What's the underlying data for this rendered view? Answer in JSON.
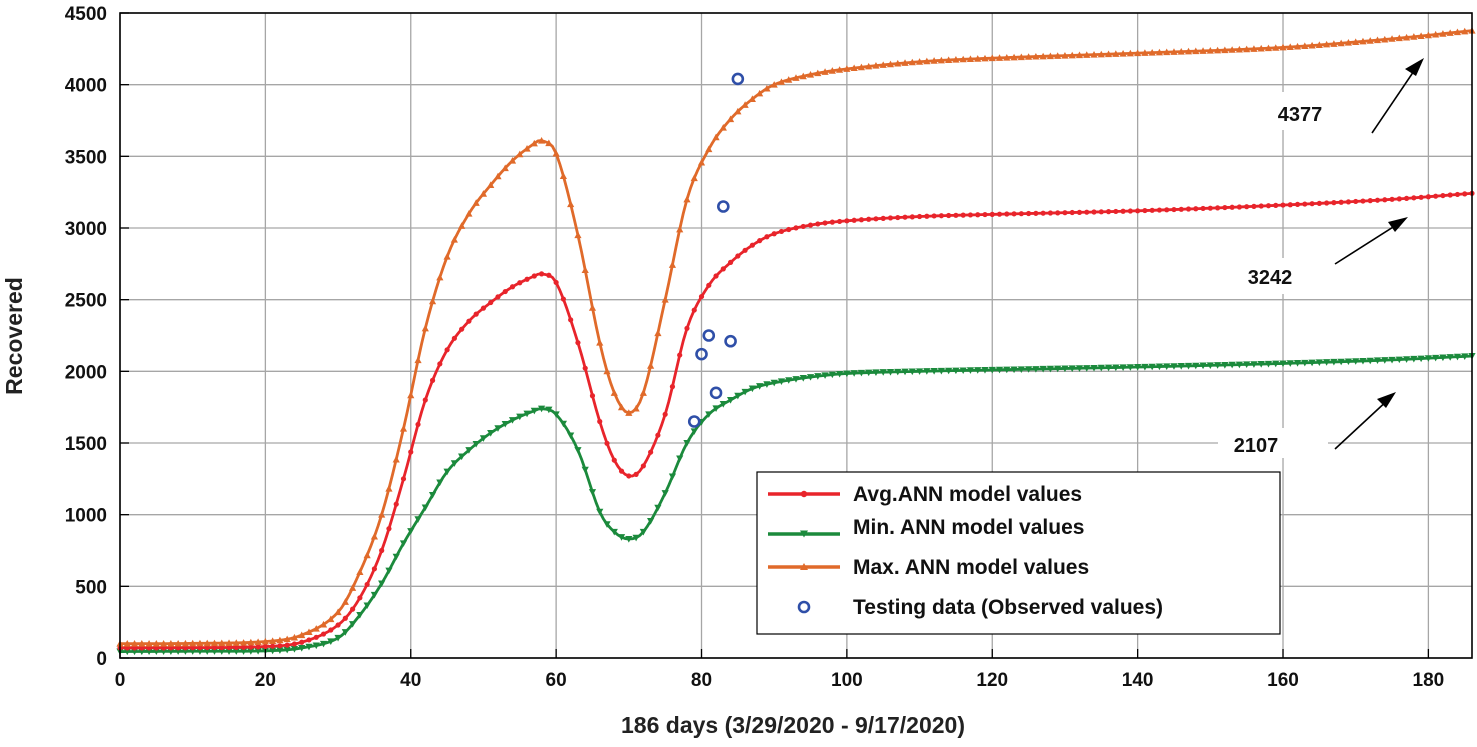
{
  "chart_data": {
    "type": "line",
    "title": "",
    "xlabel": "186 days (3/29/2020 - 9/17/2020)",
    "ylabel": "Recovered",
    "xlim": [
      0,
      186
    ],
    "ylim": [
      0,
      4500
    ],
    "xticks": [
      0,
      20,
      40,
      60,
      80,
      100,
      120,
      140,
      160,
      180
    ],
    "yticks": [
      0,
      500,
      1000,
      1500,
      2000,
      2500,
      3000,
      3500,
      4000,
      4500
    ],
    "grid": true,
    "legend_position": "bottom-right",
    "colors": {
      "avg": "#e8242b",
      "min": "#1b8a3c",
      "max": "#e06a2a",
      "testing": "#2f4fa8",
      "grid": "#a6a6a6"
    },
    "series": [
      {
        "name": "Avg.ANN model values",
        "marker": "dot",
        "anchors": [
          [
            0,
            70
          ],
          [
            10,
            72
          ],
          [
            20,
            80
          ],
          [
            25,
            110
          ],
          [
            30,
            230
          ],
          [
            33,
            420
          ],
          [
            36,
            750
          ],
          [
            39,
            1250
          ],
          [
            42,
            1800
          ],
          [
            45,
            2150
          ],
          [
            48,
            2350
          ],
          [
            51,
            2480
          ],
          [
            54,
            2590
          ],
          [
            57,
            2665
          ],
          [
            58,
            2680
          ],
          [
            60,
            2620
          ],
          [
            63,
            2200
          ],
          [
            66,
            1650
          ],
          [
            68,
            1380
          ],
          [
            70,
            1270
          ],
          [
            72,
            1340
          ],
          [
            75,
            1700
          ],
          [
            78,
            2300
          ],
          [
            81,
            2600
          ],
          [
            84,
            2760
          ],
          [
            87,
            2880
          ],
          [
            90,
            2960
          ],
          [
            95,
            3020
          ],
          [
            100,
            3050
          ],
          [
            110,
            3080
          ],
          [
            120,
            3095
          ],
          [
            140,
            3120
          ],
          [
            160,
            3160
          ],
          [
            175,
            3200
          ],
          [
            186,
            3242
          ]
        ]
      },
      {
        "name": "Min. ANN model values",
        "marker": "triangle-down",
        "anchors": [
          [
            0,
            45
          ],
          [
            10,
            47
          ],
          [
            20,
            50
          ],
          [
            25,
            70
          ],
          [
            30,
            140
          ],
          [
            33,
            300
          ],
          [
            36,
            520
          ],
          [
            39,
            800
          ],
          [
            42,
            1050
          ],
          [
            45,
            1300
          ],
          [
            48,
            1450
          ],
          [
            51,
            1570
          ],
          [
            54,
            1660
          ],
          [
            57,
            1725
          ],
          [
            58,
            1740
          ],
          [
            60,
            1700
          ],
          [
            63,
            1450
          ],
          [
            66,
            1020
          ],
          [
            68,
            880
          ],
          [
            70,
            830
          ],
          [
            72,
            880
          ],
          [
            75,
            1150
          ],
          [
            78,
            1500
          ],
          [
            81,
            1700
          ],
          [
            84,
            1800
          ],
          [
            87,
            1880
          ],
          [
            90,
            1920
          ],
          [
            95,
            1960
          ],
          [
            100,
            1985
          ],
          [
            110,
            2000
          ],
          [
            120,
            2010
          ],
          [
            140,
            2030
          ],
          [
            160,
            2055
          ],
          [
            175,
            2080
          ],
          [
            186,
            2107
          ]
        ]
      },
      {
        "name": "Max. ANN model values",
        "marker": "triangle-up",
        "anchors": [
          [
            0,
            100
          ],
          [
            10,
            102
          ],
          [
            20,
            115
          ],
          [
            25,
            160
          ],
          [
            30,
            320
          ],
          [
            33,
            600
          ],
          [
            36,
            1000
          ],
          [
            39,
            1600
          ],
          [
            42,
            2300
          ],
          [
            45,
            2800
          ],
          [
            48,
            3100
          ],
          [
            51,
            3300
          ],
          [
            54,
            3470
          ],
          [
            57,
            3590
          ],
          [
            58,
            3610
          ],
          [
            60,
            3520
          ],
          [
            63,
            2950
          ],
          [
            66,
            2200
          ],
          [
            68,
            1850
          ],
          [
            70,
            1710
          ],
          [
            72,
            1850
          ],
          [
            75,
            2500
          ],
          [
            78,
            3200
          ],
          [
            81,
            3550
          ],
          [
            84,
            3760
          ],
          [
            87,
            3900
          ],
          [
            90,
            4000
          ],
          [
            95,
            4070
          ],
          [
            100,
            4110
          ],
          [
            110,
            4160
          ],
          [
            120,
            4185
          ],
          [
            140,
            4220
          ],
          [
            160,
            4260
          ],
          [
            175,
            4320
          ],
          [
            186,
            4377
          ]
        ]
      },
      {
        "name": "Testing data (Observed values)",
        "marker": "circle",
        "points": [
          [
            79,
            1650
          ],
          [
            80,
            2120
          ],
          [
            81,
            2250
          ],
          [
            82,
            1850
          ],
          [
            83,
            3150
          ],
          [
            84,
            2210
          ],
          [
            85,
            4040
          ]
        ]
      }
    ],
    "annotations": [
      {
        "text": "4377",
        "series": "Max. ANN model values",
        "value": 4377
      },
      {
        "text": "3242",
        "series": "Avg.ANN model values",
        "value": 3242
      },
      {
        "text": "2107",
        "series": "Min. ANN model values",
        "value": 2107
      }
    ]
  }
}
